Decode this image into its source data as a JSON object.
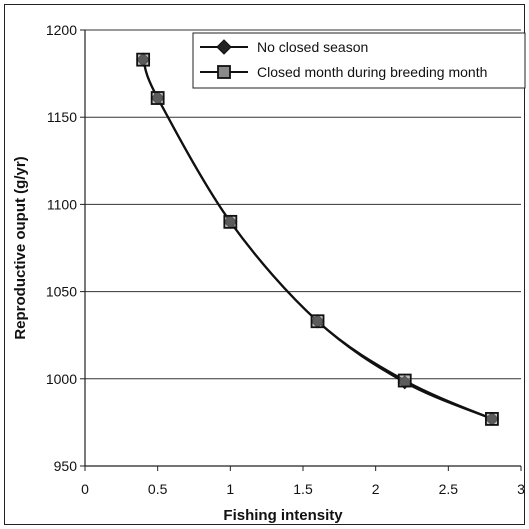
{
  "chart_data": {
    "type": "line",
    "title": "",
    "xlabel": "Fishing intensity",
    "ylabel": "Reproductive ouput (g/yr)",
    "xlim": [
      0,
      3
    ],
    "ylim": [
      950,
      1200
    ],
    "xticks": [
      0,
      0.5,
      1,
      1.5,
      2,
      2.5,
      3
    ],
    "xtick_labels": [
      "0",
      "0.5",
      "1",
      "1.5",
      "2",
      "2.5",
      "3"
    ],
    "yticks": [
      950,
      1000,
      1050,
      1100,
      1150,
      1200
    ],
    "ytick_labels": [
      "950",
      "1000",
      "1050",
      "1100",
      "1150",
      "1200"
    ],
    "grid": "horizontal",
    "legend_position": "top-right",
    "series": [
      {
        "name": "No closed season",
        "marker": "diamond",
        "color": "#111111",
        "x": [
          0.4,
          0.5,
          1.0,
          1.6,
          2.2,
          2.8
        ],
        "y": [
          1183,
          1161,
          1090,
          1033,
          998,
          977
        ]
      },
      {
        "name": "Closed month during breeding month",
        "marker": "square",
        "color": "#111111",
        "x": [
          0.4,
          0.5,
          1.0,
          1.6,
          2.2,
          2.8
        ],
        "y": [
          1183,
          1161,
          1090,
          1033,
          999,
          977
        ]
      }
    ]
  }
}
